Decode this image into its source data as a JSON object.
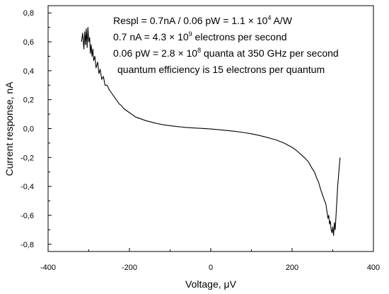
{
  "chart_data": {
    "type": "line",
    "title": "",
    "xlabel": "Voltage, μV",
    "ylabel": "Current response, nA",
    "xlim": [
      -400,
      400
    ],
    "ylim": [
      -0.85,
      0.85
    ],
    "x_ticks": [
      "-400",
      "-200",
      "0",
      "200",
      "400"
    ],
    "y_ticks": [
      "0,8",
      "0,6",
      "0,4",
      "0,2",
      "0,0",
      "-0,2",
      "-0,4",
      "-0,6",
      "-0,8"
    ],
    "grid": false,
    "legend": "none",
    "line_color": "#000000",
    "series": [
      {
        "x": [
          -318,
          -315,
          -312,
          -310,
          -308,
          -306,
          -304,
          -302,
          -300,
          -298,
          -296,
          -294,
          -292,
          -290,
          -288,
          -285,
          -282,
          -278,
          -275,
          -272,
          -268,
          -264,
          -260,
          -255,
          -250,
          -245,
          -240,
          -235,
          -230,
          -225,
          -220,
          -215,
          -210,
          -205,
          -200,
          -195,
          -190,
          -185,
          -180,
          -175,
          -170,
          -160,
          -150,
          -140,
          -130,
          -120,
          -100,
          -80,
          -60,
          -40,
          -20,
          0,
          20,
          40,
          60,
          80,
          100,
          120,
          140,
          160,
          180,
          200,
          210,
          220,
          230,
          240,
          250,
          255,
          260,
          265,
          270,
          275,
          280,
          283,
          286,
          288,
          290,
          292,
          294,
          296,
          298,
          300,
          302,
          304,
          306,
          308,
          310,
          312,
          315,
          318
        ],
        "y": [
          0.6,
          0.66,
          0.55,
          0.67,
          0.58,
          0.69,
          0.56,
          0.7,
          0.6,
          0.63,
          0.52,
          0.58,
          0.5,
          0.55,
          0.47,
          0.5,
          0.42,
          0.46,
          0.38,
          0.41,
          0.34,
          0.36,
          0.3,
          0.3,
          0.27,
          0.25,
          0.23,
          0.21,
          0.19,
          0.17,
          0.16,
          0.14,
          0.13,
          0.12,
          0.11,
          0.1,
          0.09,
          0.08,
          0.075,
          0.07,
          0.065,
          0.055,
          0.048,
          0.04,
          0.034,
          0.028,
          0.02,
          0.013,
          0.008,
          0.004,
          0.001,
          -0.003,
          -0.008,
          -0.013,
          -0.019,
          -0.027,
          -0.036,
          -0.048,
          -0.062,
          -0.078,
          -0.1,
          -0.13,
          -0.15,
          -0.175,
          -0.2,
          -0.23,
          -0.28,
          -0.3,
          -0.34,
          -0.37,
          -0.42,
          -0.46,
          -0.5,
          -0.52,
          -0.58,
          -0.62,
          -0.6,
          -0.66,
          -0.64,
          -0.7,
          -0.72,
          -0.68,
          -0.74,
          -0.65,
          -0.7,
          -0.6,
          -0.5,
          -0.4,
          -0.3,
          -0.2
        ]
      }
    ],
    "annotations": [
      {
        "parts": [
          {
            "text": "Respl = 0.7nA / 0.06 pW = 1.1"
          },
          {
            "text": " × 10"
          },
          {
            "text": "4",
            "sup": true
          },
          {
            "text": " A/W"
          }
        ]
      },
      {
        "parts": [
          {
            "text": "0.7 nA = 4.3"
          },
          {
            "text": " × 10"
          },
          {
            "text": "9",
            "sup": true
          },
          {
            "text": " electrons per second"
          }
        ]
      },
      {
        "parts": [
          {
            "text": "0.06 pW = 2.8"
          },
          {
            "text": " × 10"
          },
          {
            "text": "8",
            "sup": true
          },
          {
            "text": " quanta at 350 GHz per second"
          }
        ]
      },
      {
        "parts": [
          {
            "text": "quantum efficiency is 15 electrons per quantum"
          }
        ]
      }
    ]
  }
}
